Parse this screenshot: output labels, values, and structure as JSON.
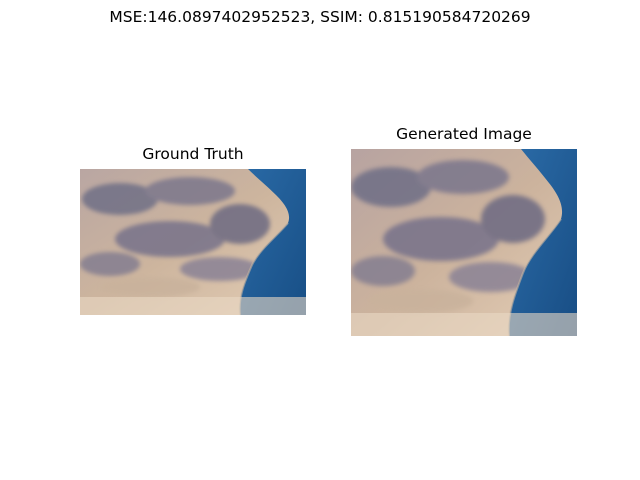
{
  "figure": {
    "suptitle": "MSE:146.0897402952523, SSIM: 0.815190584720269"
  },
  "panels": [
    {
      "title": "Ground Truth",
      "image_description_icon": "satellite-coastline-image"
    },
    {
      "title": "Generated Image",
      "image_description_icon": "satellite-coastline-image"
    }
  ],
  "colors": {
    "sand": "#d9c2a6",
    "rock": "#7d7a8c",
    "sea": "#1f5f9a",
    "haze": "#e6d2bc"
  }
}
